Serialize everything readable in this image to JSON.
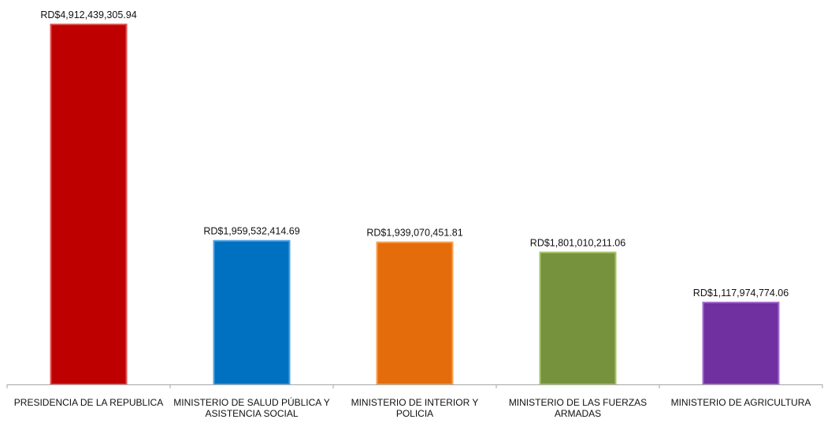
{
  "chart_data": {
    "type": "bar",
    "title": "",
    "xlabel": "",
    "ylabel": "",
    "ylim": [
      0,
      4912439305.94
    ],
    "grid": false,
    "legend": "none",
    "categories": [
      [
        "PRESIDENCIA DE LA REPUBLICA"
      ],
      [
        "MINISTERIO DE SALUD PÚBLICA Y",
        "ASISTENCIA SOCIAL"
      ],
      [
        "MINISTERIO DE  INTERIOR Y",
        "POLICIA"
      ],
      [
        "MINISTERIO DE LAS FUERZAS",
        "ARMADAS"
      ],
      [
        "MINISTERIO DE AGRICULTURA"
      ]
    ],
    "values": [
      4912439305.94,
      1959532414.69,
      1939070451.81,
      1801010211.06,
      1117974774.06
    ],
    "value_labels": [
      "RD$4,912,439,305.94",
      "RD$1,959,532,414.69",
      "RD$1,939,070,451.81",
      "RD$1,801,010,211.06",
      "RD$1,117,974,774.06"
    ],
    "colors": [
      "#bf0000",
      "#0070c0",
      "#e46c0a",
      "#76923c",
      "#7030a0"
    ],
    "edge_colors": [
      "#e05555",
      "#4aa3e3",
      "#f5a050",
      "#a6c46a",
      "#a56ccf"
    ]
  }
}
